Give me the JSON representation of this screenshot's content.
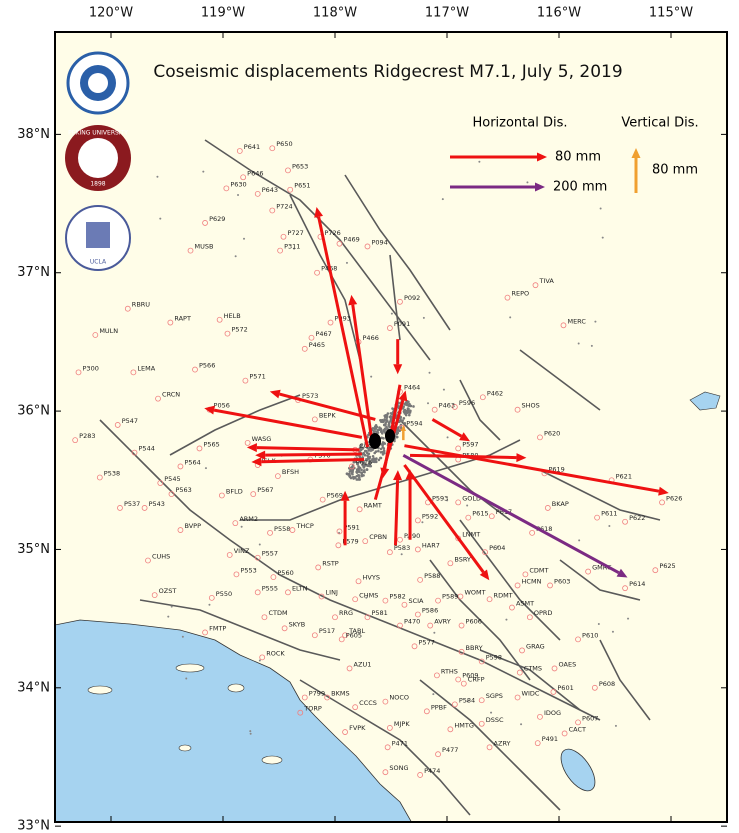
{
  "chart_data": {
    "type": "map",
    "title": "Coseismic displacements Ridgecrest M7.1, July 5, 2019",
    "xlim": [
      -120.5,
      -114.5
    ],
    "ylim": [
      33.03,
      38.74
    ],
    "xticks": [
      {
        "value": -120,
        "label": "120°W"
      },
      {
        "value": -119,
        "label": "119°W"
      },
      {
        "value": -118,
        "label": "118°W"
      },
      {
        "value": -117,
        "label": "117°W"
      },
      {
        "value": -116,
        "label": "116°W"
      },
      {
        "value": -115,
        "label": "115°W"
      }
    ],
    "yticks": [
      {
        "value": 33,
        "label": "33°N"
      },
      {
        "value": 34,
        "label": "34°N"
      },
      {
        "value": 35,
        "label": "35°N"
      },
      {
        "value": 36,
        "label": "36°N"
      },
      {
        "value": 37,
        "label": "37°N"
      },
      {
        "value": 38,
        "label": "38°N"
      }
    ],
    "logos": {
      "peking": "PEKING UNIVERSITY",
      "peking_year": "1898",
      "ucla": "UCLA"
    },
    "legend": {
      "horizontal_title": "Horizontal Dis.",
      "vertical_title": "Vertical Dis."
    },
    "stations": {
      "names": [
        "P641",
        "P650",
        "P653",
        "P646",
        "P630",
        "P643",
        "P651",
        "P724",
        "P629",
        "P727",
        "P726",
        "P469",
        "P094",
        "MUSB",
        "P311",
        "P468",
        "TIVA",
        "REPO",
        "RBRU",
        "P092",
        "HELB",
        "RAPT",
        "P093",
        "P572",
        "P091",
        "MERC",
        "MULN",
        "P467",
        "P466",
        "P465",
        "P300",
        "LEMA",
        "P566",
        "P571",
        "P573",
        "P464",
        "P462",
        "CRCN",
        "P056",
        "P596",
        "P463",
        "SHOS",
        "BEPK",
        "P547",
        "P594",
        "P620",
        "P283",
        "WASG",
        "P565",
        "P544",
        "P597",
        "P570",
        "P580",
        "ISLK",
        "P564",
        "P619",
        "BFSH",
        "P621",
        "P538",
        "P545",
        "P563",
        "BFLD",
        "P567",
        "P569",
        "P593",
        "GOLD",
        "P626",
        "P537",
        "P543",
        "RAMT",
        "BKAP",
        "P615",
        "P617",
        "P616",
        "CCCC",
        "P611",
        "P622",
        "P592",
        "P591",
        "ARM2",
        "P618",
        "P558",
        "THCP",
        "CPBN",
        "P590",
        "BVPP",
        "P579",
        "LNMT",
        "P583",
        "HAR7",
        "P604",
        "VINZ",
        "CUHS",
        "P557",
        "BSRY",
        "RSTP",
        "P553",
        "P560",
        "CDMT",
        "P625",
        "GMRC",
        "P588",
        "HVYS",
        "HCMN",
        "P603",
        "P614",
        "OZST",
        "P550",
        "P555",
        "ELTN",
        "LINJ",
        "WOMT",
        "CHMS",
        "P589",
        "RDMT",
        "P582",
        "SCIA",
        "ASMT",
        "OPRD",
        "CTDM",
        "P586",
        "RRG",
        "P581",
        "P470",
        "AVRY",
        "P606",
        "SKYB",
        "FMTP",
        "P517",
        "TABL",
        "P605",
        "P610",
        "P577",
        "GRAG",
        "BBRY",
        "ROCK",
        "P598",
        "CTMS",
        "OAES",
        "RTHS",
        "P609",
        "CRFP",
        "P601",
        "P608",
        "WIDC",
        "P799",
        "BKMS",
        "SGPS",
        "NOCO",
        "P584",
        "CCCS",
        "IDOG",
        "TORP",
        "PPBF",
        "P607",
        "HMTG",
        "DSSC",
        "CACT",
        "FVPK",
        "MJPK",
        "P491",
        "AZRY",
        "P471",
        "P477",
        "SONG",
        "P474",
        "AZU1"
      ],
      "lon": [
        -118.85,
        -118.56,
        -118.42,
        -118.82,
        -118.97,
        -118.69,
        -118.4,
        -118.56,
        -119.16,
        -118.46,
        -118.13,
        -117.96,
        -117.71,
        -119.29,
        -118.49,
        -118.16,
        -116.21,
        -116.46,
        -119.85,
        -117.42,
        -119.03,
        -119.47,
        -118.04,
        -118.96,
        -117.51,
        -115.96,
        -120.14,
        -118.21,
        -117.79,
        -118.27,
        -120.29,
        -119.8,
        -119.25,
        -118.8,
        -118.33,
        -117.42,
        -116.68,
        -119.58,
        -119.12,
        -116.93,
        -117.11,
        -116.37,
        -118.18,
        -119.94,
        -117.4,
        -116.17,
        -120.32,
        -118.78,
        -119.21,
        -119.79,
        -116.9,
        -118.22,
        -116.9,
        -118.69,
        -119.38,
        -116.13,
        -118.51,
        -115.53,
        -120.1,
        -119.56,
        -119.46,
        -119.01,
        -118.73,
        -118.11,
        -117.17,
        -116.9,
        -115.08,
        -119.92,
        -119.7,
        -117.78,
        -116.1,
        -116.81,
        -116.6,
        -117.85,
        -117.82,
        -115.66,
        -115.41,
        -117.26,
        -117.96,
        -118.89,
        -116.24,
        -118.58,
        -118.38,
        -117.73,
        -117.42,
        -119.38,
        -117.97,
        -116.9,
        -117.51,
        -117.26,
        -116.66,
        -118.94,
        -119.67,
        -118.69,
        -116.97,
        -118.15,
        -118.88,
        -118.55,
        -116.3,
        -115.14,
        -115.74,
        -117.24,
        -117.79,
        -116.37,
        -116.08,
        -115.41,
        -119.61,
        -119.1,
        -118.69,
        -118.42,
        -118.12,
        -116.88,
        -117.82,
        -117.08,
        -116.62,
        -117.55,
        -117.38,
        -116.42,
        -116.26,
        -118.63,
        -117.26,
        -118.0,
        -117.71,
        -117.42,
        -117.15,
        -116.87,
        -118.45,
        -119.16,
        -118.18,
        -117.91,
        -117.94,
        -115.83,
        -117.29,
        -116.33,
        -116.87,
        -118.65,
        -116.69,
        -116.35,
        -116.04,
        -117.09,
        -116.9,
        -116.85,
        -116.05,
        -115.68,
        -116.37,
        -118.27,
        -118.07,
        -116.69,
        -117.55,
        -116.93,
        -117.82,
        -116.17,
        -118.31,
        -117.18,
        -115.83,
        -116.97,
        -116.69,
        -115.95,
        -117.91,
        -117.51,
        -116.19,
        -116.62,
        -117.53,
        -117.08,
        -117.55,
        -117.24,
        -117.87
      ],
      "lat": [
        37.88,
        37.9,
        37.74,
        37.69,
        37.61,
        37.57,
        37.6,
        37.45,
        37.36,
        37.26,
        37.26,
        37.21,
        37.19,
        37.16,
        37.16,
        37.0,
        36.91,
        36.82,
        36.74,
        36.79,
        36.66,
        36.64,
        36.64,
        36.56,
        36.6,
        36.62,
        36.55,
        36.53,
        36.5,
        36.45,
        36.28,
        36.28,
        36.3,
        36.22,
        36.08,
        36.14,
        36.1,
        36.09,
        36.01,
        36.03,
        36.01,
        36.01,
        35.94,
        35.9,
        35.88,
        35.81,
        35.79,
        35.77,
        35.73,
        35.7,
        35.73,
        35.65,
        35.65,
        35.61,
        35.6,
        35.55,
        35.53,
        35.5,
        35.52,
        35.48,
        35.4,
        35.39,
        35.4,
        35.36,
        35.34,
        35.34,
        35.34,
        35.3,
        35.3,
        35.29,
        35.3,
        35.23,
        35.24,
        35.6,
        35.72,
        35.23,
        35.2,
        35.21,
        35.13,
        35.19,
        35.12,
        35.12,
        35.14,
        35.06,
        35.07,
        35.14,
        35.03,
        35.08,
        34.98,
        35.0,
        34.98,
        34.96,
        34.92,
        34.94,
        34.9,
        34.87,
        34.82,
        34.8,
        34.82,
        34.85,
        34.84,
        34.78,
        34.77,
        34.74,
        34.74,
        34.72,
        34.67,
        34.65,
        34.69,
        34.69,
        34.66,
        34.66,
        34.64,
        34.63,
        34.64,
        34.63,
        34.6,
        34.58,
        34.51,
        34.51,
        34.53,
        34.51,
        34.51,
        34.45,
        34.45,
        34.45,
        34.43,
        34.4,
        34.38,
        34.38,
        34.35,
        34.35,
        34.3,
        34.27,
        34.26,
        34.22,
        34.19,
        34.11,
        34.14,
        34.09,
        34.06,
        34.03,
        33.97,
        34.0,
        33.93,
        33.93,
        33.93,
        33.91,
        33.9,
        33.88,
        33.86,
        33.79,
        33.82,
        33.83,
        33.75,
        33.7,
        33.74,
        33.67,
        33.68,
        33.71,
        33.6,
        33.57,
        33.57,
        33.52,
        33.39,
        33.37,
        34.14
      ]
    },
    "series": [
      {
        "kind": "horizontal",
        "color": "#ee1111",
        "scale_value": 80,
        "scale_label": "80 mm",
        "lon": [
          -117.71,
          -117.67,
          -117.76,
          -117.78,
          -117.76,
          -117.74,
          -117.64,
          -117.38,
          -117.33,
          -117.38,
          -117.64,
          -117.42,
          -117.33,
          -117.46,
          -117.13,
          -117.91,
          -117.44
        ],
        "lat": [
          35.74,
          35.78,
          35.81,
          35.72,
          35.69,
          35.65,
          35.94,
          35.75,
          35.68,
          35.61,
          35.36,
          36.19,
          35.07,
          35.03,
          35.94,
          35.03,
          36.52
        ],
        "east": [
          -42,
          -17,
          -130,
          -93,
          -88,
          -93,
          -87,
          218,
          96,
          70,
          25,
          -14,
          0,
          2,
          31,
          0,
          0
        ],
        "north": [
          198,
          121,
          24,
          2,
          -1,
          -2,
          23,
          -39,
          -2,
          -95,
          90,
          -77,
          58,
          62,
          -18,
          45,
          -29
        ]
      },
      {
        "kind": "horizontal",
        "color": "#7b2a83",
        "scale_value": 200,
        "scale_label": "200 mm",
        "lon": [
          -117.39
        ],
        "lat": [
          35.68
        ],
        "east": [
          472
        ],
        "north": [
          -257
        ]
      },
      {
        "kind": "vertical",
        "color": "#f0a030",
        "scale_value": 80,
        "scale_label": "80 mm",
        "lon": [
          -117.39
        ],
        "lat": [
          35.79
        ],
        "up": [
          27
        ]
      }
    ]
  }
}
